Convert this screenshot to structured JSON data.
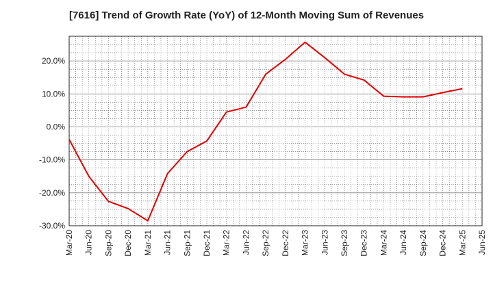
{
  "chart_data": {
    "type": "line",
    "title": "[7616]  Trend of Growth Rate (YoY) of 12-Month Moving Sum of Revenues",
    "xlabel": "",
    "ylabel": "",
    "x_ticks": [
      "Mar-20",
      "Jun-20",
      "Sep-20",
      "Dec-20",
      "Mar-21",
      "Jun-21",
      "Sep-21",
      "Dec-21",
      "Mar-22",
      "Jun-22",
      "Sep-22",
      "Dec-22",
      "Mar-23",
      "Jun-23",
      "Sep-23",
      "Dec-23",
      "Mar-24",
      "Jun-24",
      "Sep-24",
      "Dec-24",
      "Mar-25",
      "Jun-25"
    ],
    "y_ticks": [
      "-30.0%",
      "-20.0%",
      "-10.0%",
      "0.0%",
      "10.0%",
      "20.0%"
    ],
    "y_tick_values": [
      -30,
      -20,
      -10,
      0,
      10,
      20
    ],
    "ylim": [
      -30,
      27.5
    ],
    "grid": true,
    "series": [
      {
        "color": "#e00000",
        "x": [
          "Mar-20",
          "Jun-20",
          "Sep-20",
          "Dec-20",
          "Mar-21",
          "Jun-21",
          "Sep-21",
          "Dec-21",
          "Mar-22",
          "Jun-22",
          "Sep-22",
          "Dec-22",
          "Mar-23",
          "Jun-23",
          "Sep-23",
          "Dec-23",
          "Mar-24",
          "Jun-24",
          "Sep-24",
          "Dec-24",
          "Mar-25"
        ],
        "values": [
          -3.8,
          -15.0,
          -22.6,
          -24.8,
          -28.5,
          -14.2,
          -7.5,
          -4.3,
          4.5,
          6.0,
          16.0,
          20.5,
          25.7,
          21.0,
          16.0,
          14.2,
          9.3,
          9.1,
          9.1,
          10.4,
          11.6
        ]
      }
    ]
  }
}
